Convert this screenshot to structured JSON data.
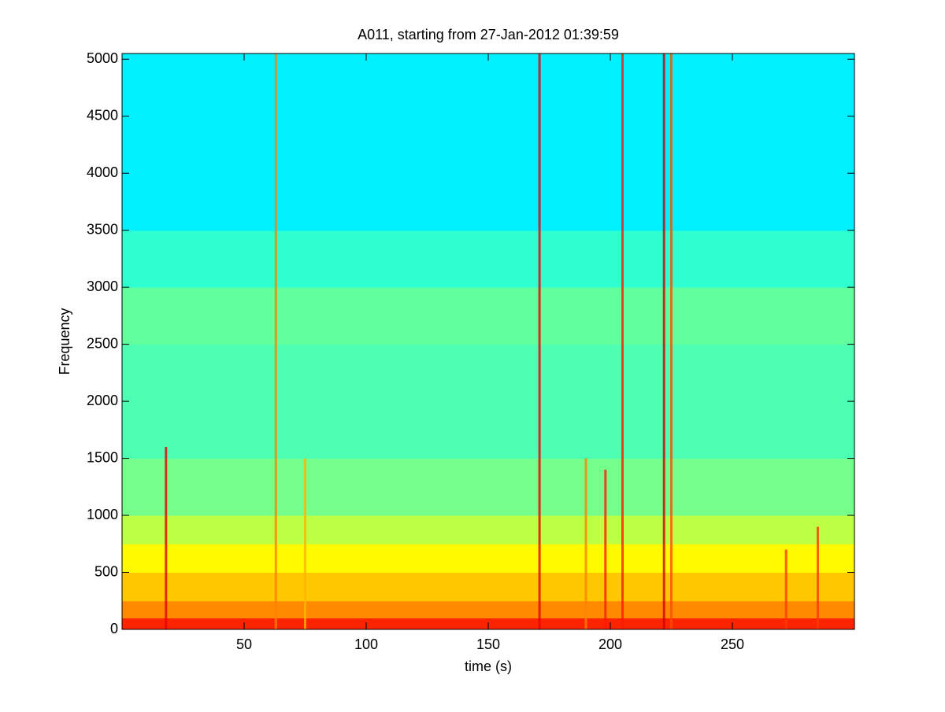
{
  "chart_data": {
    "type": "spectrogram",
    "title": "A011, starting from 27-Jan-2012 01:39:59",
    "x_label": "time (s)",
    "y_label": "Frequency",
    "xlim": [
      0,
      300
    ],
    "ylim": [
      0,
      5050
    ],
    "xticks": [
      50,
      100,
      150,
      200,
      250
    ],
    "yticks": [
      0,
      500,
      1000,
      1500,
      2000,
      2500,
      3000,
      3500,
      4000,
      4500,
      5000
    ],
    "colormap": "jet",
    "band_edges": [
      0,
      100,
      250,
      500,
      750,
      1000,
      1500,
      2500,
      3000,
      3500,
      5050
    ],
    "band_levels": [
      0.84,
      0.74,
      0.68,
      0.63,
      0.56,
      0.49,
      0.45,
      0.47,
      0.42,
      0.36
    ],
    "events": {
      "times": [
        18,
        63,
        75,
        171,
        190,
        198,
        205,
        222,
        225,
        272,
        285
      ],
      "fmax": [
        1600,
        5050,
        1500,
        5050,
        1500,
        1400,
        5050,
        5050,
        5050,
        700,
        900
      ],
      "levels": [
        0.9,
        0.75,
        0.7,
        0.9,
        0.75,
        0.85,
        0.85,
        0.92,
        0.8,
        0.82,
        0.82
      ]
    }
  }
}
